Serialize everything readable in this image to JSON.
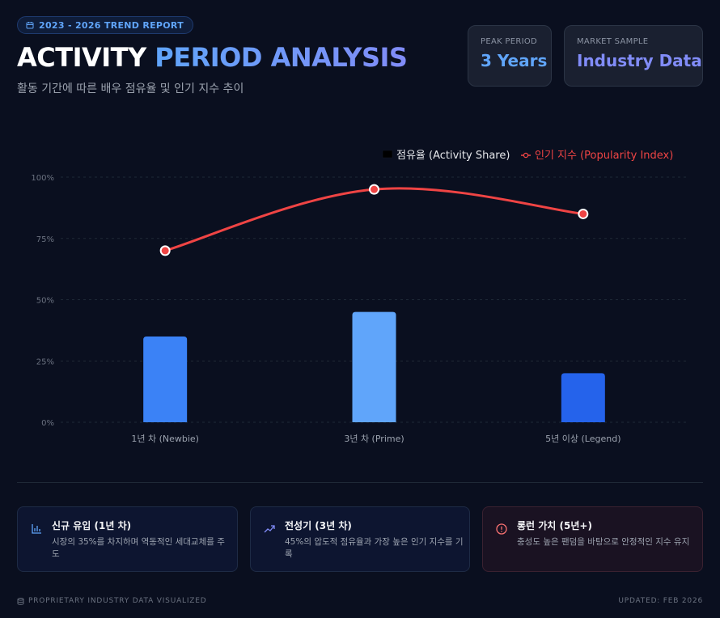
{
  "header": {
    "badge": "2023 - 2026 TREND REPORT",
    "title_part1": "ACTIVITY",
    "title_part2": "PERIOD ANALYSIS",
    "subtitle": "활동 기간에 따른 배우 점유율 및 인기 지수 추이"
  },
  "stats": [
    {
      "label": "PEAK PERIOD",
      "value": "3 Years"
    },
    {
      "label": "MARKET SAMPLE",
      "value": "Industry Data"
    }
  ],
  "colors": {
    "bar_newbie": "#3b82f6",
    "bar_prime": "#60a5fa",
    "bar_legend": "#2563eb",
    "line": "#ef4444",
    "background": "#0a0f1f"
  },
  "chart_data": {
    "type": "bar",
    "categories": [
      "1년 차 (Newbie)",
      "3년 차 (Prime)",
      "5년 이상 (Legend)"
    ],
    "series": [
      {
        "name": "점유율 (Activity Share)",
        "type": "bar",
        "values": [
          35,
          45,
          20
        ]
      },
      {
        "name": "인기 지수 (Popularity Index)",
        "type": "line",
        "values": [
          70,
          95,
          85
        ]
      }
    ],
    "yticks": [
      "0%",
      "25%",
      "50%",
      "75%",
      "100%"
    ],
    "ylim": [
      0,
      100
    ],
    "grid": true,
    "legend_position": "top-right"
  },
  "cards": [
    {
      "title": "신규 유입 (1년 차)",
      "desc": "시장의 35%를 차지하며 역동적인 세대교체를 주도",
      "icon": "bar-chart-icon"
    },
    {
      "title": "전성기 (3년 차)",
      "desc": "45%의 압도적 점유율과 가장 높은 인기 지수를 기록",
      "icon": "trending-up-icon"
    },
    {
      "title": "롱런 가치 (5년+)",
      "desc": "충성도 높은 팬덤을 바탕으로 안정적인 지수 유지",
      "icon": "alert-circle-icon"
    }
  ],
  "footer": {
    "left": "PROPRIETARY INDUSTRY DATA VISUALIZED",
    "right": "UPDATED: FEB 2026"
  }
}
